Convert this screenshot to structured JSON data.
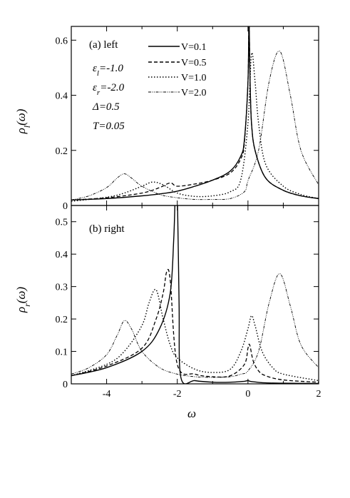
{
  "chart_data": [
    {
      "type": "line",
      "panel_label": "(a) left",
      "ylabel_main": "ρ",
      "ylabel_sub": "l",
      "ylabel_arg": "(ω)",
      "xlabel": "ω",
      "xlim": [
        -5,
        2
      ],
      "ylim": [
        0,
        0.65
      ],
      "x_ticks": [
        "-4",
        "-2",
        "0",
        "2"
      ],
      "y_ticks": [
        "0",
        "0.2",
        "0.4",
        "0.6"
      ],
      "y_tick_values": [
        0,
        0.2,
        0.4,
        0.6
      ],
      "parameters": [
        {
          "sym": "ε",
          "sub": "l",
          "val": "=-1.0"
        },
        {
          "sym": "ε",
          "sub": "r",
          "val": "=-2.0"
        },
        {
          "sym": "Δ",
          "sub": "",
          "val": "=0.5"
        },
        {
          "sym": "T",
          "sub": "",
          "val": "=0.05"
        }
      ],
      "series": [
        {
          "name": "V=0.1",
          "dash": "solid",
          "x": [
            -5,
            -4,
            -3,
            -2.5,
            -2,
            -1.5,
            -1,
            -0.5,
            -0.2,
            -0.1,
            0,
            0.03,
            0.06,
            0.1,
            0.2,
            0.5,
            1,
            1.5,
            2
          ],
          "y": [
            0.02,
            0.025,
            0.035,
            0.042,
            0.052,
            0.07,
            0.092,
            0.125,
            0.18,
            0.24,
            0.45,
            0.66,
            0.45,
            0.3,
            0.2,
            0.1,
            0.055,
            0.035,
            0.025
          ]
        },
        {
          "name": "V=0.5",
          "dash": "dashed",
          "x": [
            -5,
            -4,
            -3,
            -2.5,
            -2.2,
            -2,
            -1.5,
            -1,
            -0.5,
            -0.2,
            -0.1,
            0,
            0.03,
            0.06,
            0.1,
            0.2,
            0.5,
            1,
            1.5,
            2
          ],
          "y": [
            0.02,
            0.028,
            0.045,
            0.065,
            0.082,
            0.07,
            0.078,
            0.092,
            0.118,
            0.17,
            0.23,
            0.45,
            0.66,
            0.45,
            0.3,
            0.2,
            0.1,
            0.055,
            0.035,
            0.025
          ]
        },
        {
          "name": "V=1.0",
          "dash": "dotted",
          "x": [
            -5,
            -4,
            -3.5,
            -3,
            -2.7,
            -2.4,
            -2,
            -1.5,
            -1,
            -0.5,
            -0.2,
            0,
            0.1,
            0.2,
            0.3,
            0.5,
            1,
            1.5,
            2
          ],
          "y": [
            0.015,
            0.03,
            0.045,
            0.07,
            0.085,
            0.075,
            0.045,
            0.033,
            0.035,
            0.05,
            0.095,
            0.3,
            0.55,
            0.45,
            0.3,
            0.15,
            0.07,
            0.04,
            0.025
          ]
        },
        {
          "name": "V=2.0",
          "dash": "dashdotdot",
          "x": [
            -5,
            -4.5,
            -4,
            -3.7,
            -3.5,
            -3.3,
            -3,
            -2.5,
            -2,
            -1.5,
            -1,
            -0.5,
            -0.1,
            0,
            0.3,
            0.6,
            0.9,
            1.2,
            1.5,
            2
          ],
          "y": [
            0.02,
            0.035,
            0.065,
            0.1,
            0.115,
            0.1,
            0.07,
            0.04,
            0.028,
            0.022,
            0.022,
            0.025,
            0.05,
            0.09,
            0.2,
            0.45,
            0.56,
            0.4,
            0.2,
            0.075
          ]
        }
      ]
    },
    {
      "type": "line",
      "panel_label": "(b) right",
      "ylabel_main": "ρ",
      "ylabel_sub": "r",
      "ylabel_arg": "(ω)",
      "xlabel": "ω",
      "xlim": [
        -5,
        2
      ],
      "ylim": [
        0,
        0.55
      ],
      "x_ticks": [
        "-4",
        "-2",
        "0",
        "2"
      ],
      "y_ticks": [
        "0",
        "0.1",
        "0.2",
        "0.3",
        "0.4",
        "0.5"
      ],
      "y_tick_values": [
        0,
        0.1,
        0.2,
        0.3,
        0.4,
        0.5
      ],
      "series": [
        {
          "name": "V=0.1",
          "dash": "solid",
          "x": [
            -5,
            -4,
            -3,
            -2.5,
            -2.2,
            -2.1,
            -2.05,
            -2.0,
            -1.95,
            -1.9,
            -1.5,
            -1,
            -0.5,
            -0.1,
            0,
            0.1,
            0.5,
            1,
            2
          ],
          "y": [
            0.025,
            0.05,
            0.1,
            0.17,
            0.28,
            0.45,
            0.6,
            0.6,
            0.25,
            0.02,
            0.01,
            0.005,
            0.005,
            0.008,
            0.01,
            0.007,
            0.003,
            0.002,
            0.001
          ]
        },
        {
          "name": "V=0.5",
          "dash": "dashed",
          "x": [
            -5,
            -4,
            -3,
            -2.6,
            -2.4,
            -2.3,
            -2.2,
            -2.0,
            -1.5,
            -1,
            -0.5,
            -0.1,
            0,
            0.05,
            0.15,
            0.3,
            0.5,
            1,
            2
          ],
          "y": [
            0.025,
            0.055,
            0.11,
            0.2,
            0.28,
            0.345,
            0.32,
            0.06,
            0.03,
            0.022,
            0.025,
            0.06,
            0.11,
            0.12,
            0.07,
            0.04,
            0.025,
            0.012,
            0.005
          ]
        },
        {
          "name": "V=1.0",
          "dash": "dotted",
          "x": [
            -5,
            -4,
            -3.5,
            -3,
            -2.8,
            -2.6,
            -2.4,
            -2.2,
            -2,
            -1.5,
            -1,
            -0.5,
            -0.2,
            0,
            0.1,
            0.2,
            0.4,
            0.7,
            1,
            2
          ],
          "y": [
            0.025,
            0.06,
            0.1,
            0.18,
            0.25,
            0.29,
            0.2,
            0.12,
            0.08,
            0.045,
            0.035,
            0.045,
            0.1,
            0.17,
            0.21,
            0.18,
            0.1,
            0.05,
            0.03,
            0.01
          ]
        },
        {
          "name": "V=2.0",
          "dash": "dashdotdot",
          "x": [
            -5,
            -4.5,
            -4,
            -3.7,
            -3.5,
            -3.3,
            -3,
            -2.5,
            -2,
            -1.5,
            -1,
            -0.5,
            -0.2,
            0,
            0.3,
            0.6,
            0.9,
            1.2,
            1.5,
            2
          ],
          "y": [
            0.03,
            0.05,
            0.09,
            0.15,
            0.195,
            0.17,
            0.1,
            0.05,
            0.03,
            0.022,
            0.02,
            0.022,
            0.03,
            0.04,
            0.1,
            0.25,
            0.34,
            0.24,
            0.12,
            0.05
          ]
        }
      ]
    }
  ],
  "legend": [
    {
      "label": "V=0.1",
      "dash": "solid"
    },
    {
      "label": "V=0.5",
      "dash": "dashed"
    },
    {
      "label": "V=1.0",
      "dash": "dotted"
    },
    {
      "label": "V=2.0",
      "dash": "dashdotdot"
    }
  ]
}
